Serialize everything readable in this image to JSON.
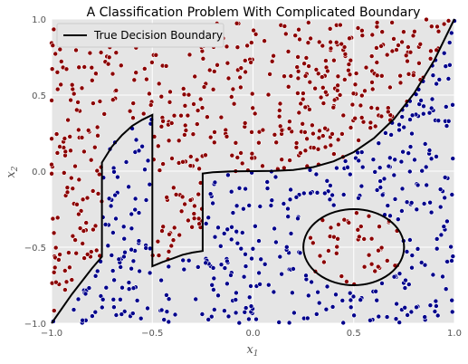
{
  "chart_data": {
    "type": "scatter",
    "title": "A Classification Problem With Complicated Boundary",
    "xlabel": "x_1",
    "ylabel": "x_2",
    "xlim": [
      -1.0,
      1.0
    ],
    "ylim": [
      -1.0,
      1.0
    ],
    "x_ticks": [
      "−1.0",
      "−0.5",
      "0.0",
      "0.5",
      "1.0"
    ],
    "y_ticks": [
      "−1.0",
      "−0.5",
      "0.0",
      "0.5",
      "1.0"
    ],
    "grid": true,
    "legend": {
      "position": "top-left",
      "entries": [
        "True Decision Boundary"
      ]
    },
    "colors": {
      "class_above": "#8b0000",
      "class_below": "#00008b",
      "boundary": "#000000",
      "plot_bg": "#e5e5e5",
      "grid": "#ffffff"
    },
    "series": [
      {
        "name": "True Decision Boundary",
        "type": "line",
        "x": [
          -1.0,
          -0.9,
          -0.8,
          -0.75,
          -0.75,
          -0.75,
          -0.7,
          -0.65,
          -0.6,
          -0.55,
          -0.5,
          -0.5,
          -0.5,
          -0.45,
          -0.4,
          -0.35,
          -0.3,
          -0.25,
          -0.25,
          -0.25,
          -0.2,
          -0.1,
          0.0,
          0.1,
          0.2,
          0.3,
          0.4,
          0.5,
          0.6,
          0.7,
          0.8,
          0.9,
          1.0
        ],
        "y": [
          -1.0,
          -0.81,
          -0.64,
          -0.5625,
          -0.3,
          0.0563,
          0.1625,
          0.2375,
          0.2975,
          0.3375,
          0.37,
          0.0,
          -0.625,
          -0.5975,
          -0.575,
          -0.55,
          -0.535,
          -0.525,
          -0.3,
          -0.0156,
          -0.008,
          -0.001,
          0.0,
          0.001,
          0.008,
          0.027,
          0.064,
          0.125,
          0.216,
          0.343,
          0.512,
          0.729,
          1.0
        ]
      },
      {
        "name": "",
        "type": "line",
        "shape": "circle",
        "center": [
          0.5,
          -0.5
        ],
        "radius": 0.25
      }
    ],
    "points_note_seed": 7,
    "n_points": 1000
  }
}
